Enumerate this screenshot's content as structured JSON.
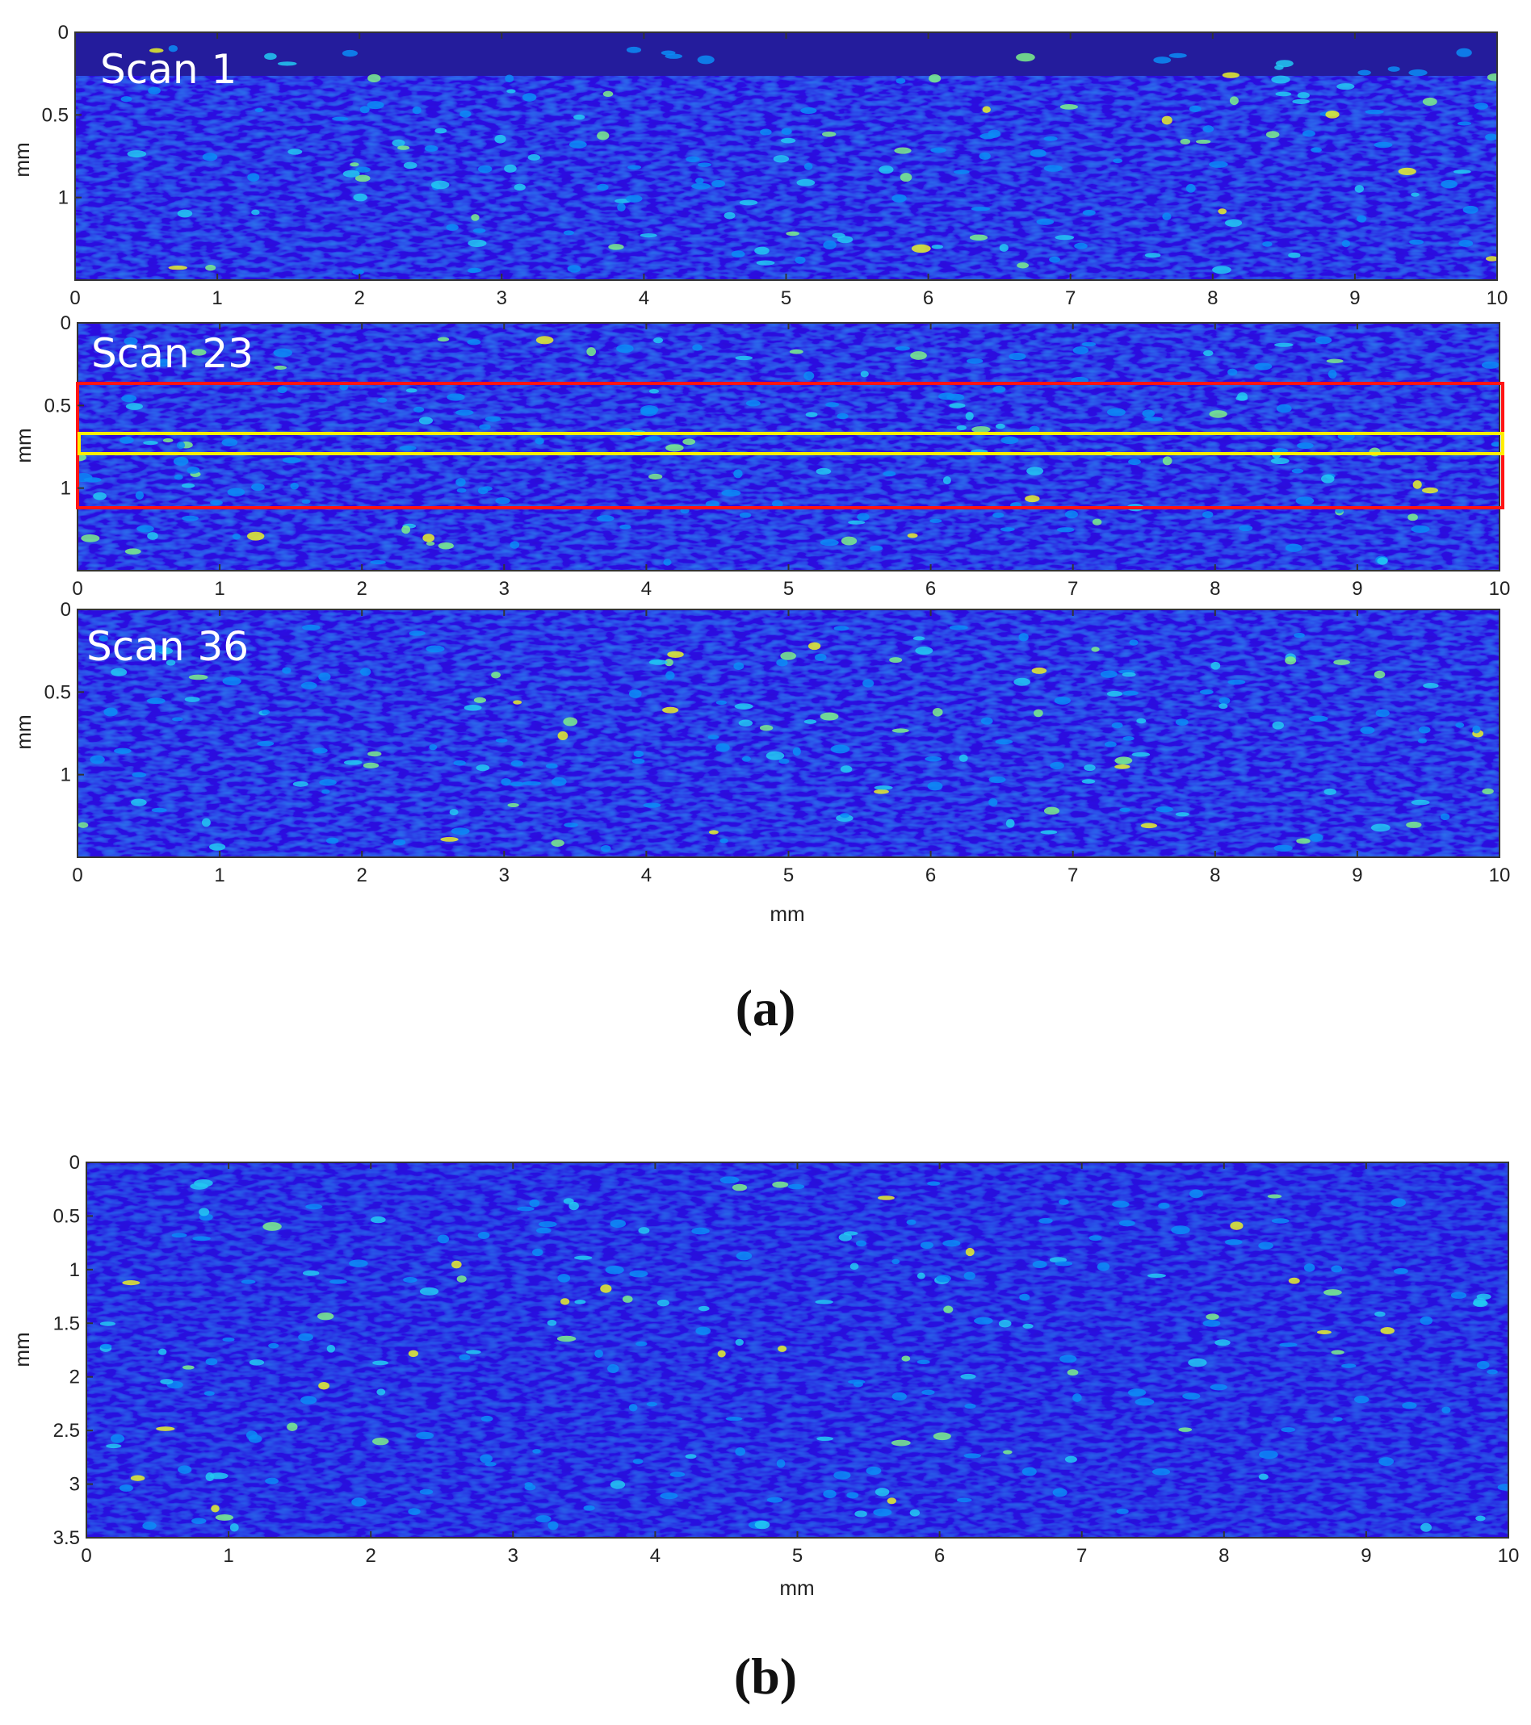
{
  "colors": {
    "background": "#1a1ad8",
    "speckle_colormap": [
      "#1a1ad8",
      "#0f46f0",
      "#0b8cf6",
      "#22c9f2",
      "#7cf08a",
      "#e8f02a"
    ],
    "top_strip": "#241c9c",
    "roi_outer": "#ff1414",
    "roi_inner": "#ffee00",
    "axis": "#333333",
    "label_text": "#ffffff"
  },
  "panel_a": {
    "caption": "(a)",
    "x_axis_title": "mm",
    "scans": [
      {
        "label": "Scan 1",
        "y_axis_title": "mm",
        "x_ticks": [
          "0",
          "1",
          "2",
          "3",
          "4",
          "5",
          "6",
          "7",
          "8",
          "9",
          "10"
        ],
        "y_ticks": [
          "0",
          "0.5",
          "1"
        ]
      },
      {
        "label": "Scan 23",
        "y_axis_title": "mm",
        "x_ticks": [
          "0",
          "1",
          "2",
          "3",
          "4",
          "5",
          "6",
          "7",
          "8",
          "9",
          "10"
        ],
        "y_ticks": [
          "0",
          "0.5",
          "1"
        ]
      },
      {
        "label": "Scan 36",
        "y_axis_title": "mm",
        "x_ticks": [
          "0",
          "1",
          "2",
          "3",
          "4",
          "5",
          "6",
          "7",
          "8",
          "9",
          "10"
        ],
        "y_ticks": [
          "0",
          "0.5",
          "1"
        ]
      }
    ]
  },
  "panel_b": {
    "caption": "(b)",
    "x_axis_title": "mm",
    "y_axis_title": "mm",
    "x_ticks": [
      "0",
      "1",
      "2",
      "3",
      "4",
      "5",
      "6",
      "7",
      "8",
      "9",
      "10"
    ],
    "y_ticks": [
      "0",
      "0.5",
      "1",
      "1.5",
      "2",
      "2.5",
      "3",
      "3.5"
    ]
  }
}
